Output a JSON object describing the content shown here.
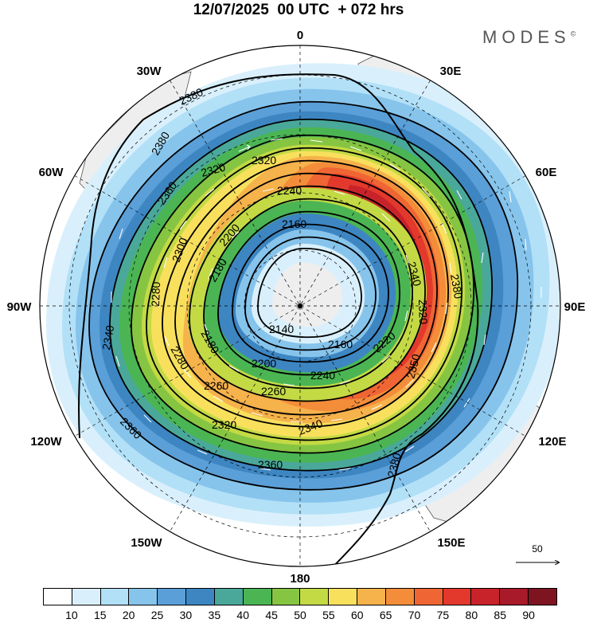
{
  "header": {
    "title": "12/07/2025  00 UTC  + 072 hrs",
    "brand": "MODES",
    "brand_mark": "©"
  },
  "map": {
    "projection": "south polar stereographic",
    "longitude_labels": {
      "top": "0",
      "top_right": "30E",
      "right_upper": "60E",
      "right": "90E",
      "right_lower": "120E",
      "bottom_right": "150E",
      "bottom": "180",
      "bottom_left": "150W",
      "left_lower": "120W",
      "left": "90W",
      "left_upper": "60W",
      "top_left": "30W"
    },
    "contour_labels": [
      "2380",
      "2380",
      "2360",
      "2320",
      "2320",
      "2240",
      "2200",
      "2160",
      "2180",
      "2300",
      "2340",
      "2380",
      "2320",
      "2280",
      "2140",
      "2160",
      "2220",
      "2200",
      "2240",
      "2180",
      "2280",
      "2260",
      "2260",
      "2350",
      "2340",
      "2340",
      "2320",
      "2360",
      "2360",
      "2380"
    ],
    "reference_vector": "50"
  },
  "colorbar": {
    "colors": [
      "#ffffff",
      "#d9f0fc",
      "#b2e0f7",
      "#86c4ec",
      "#5a9fd8",
      "#3d86c2",
      "#4aa89a",
      "#4bb554",
      "#86c542",
      "#c3da45",
      "#f8e05d",
      "#f6b24b",
      "#f48d3a",
      "#ef6533",
      "#e3392c",
      "#c8232a",
      "#a8192a",
      "#7f1421"
    ],
    "ticks": [
      "10",
      "15",
      "20",
      "25",
      "30",
      "35",
      "40",
      "45",
      "50",
      "55",
      "60",
      "65",
      "70",
      "75",
      "80",
      "85",
      "90"
    ]
  }
}
